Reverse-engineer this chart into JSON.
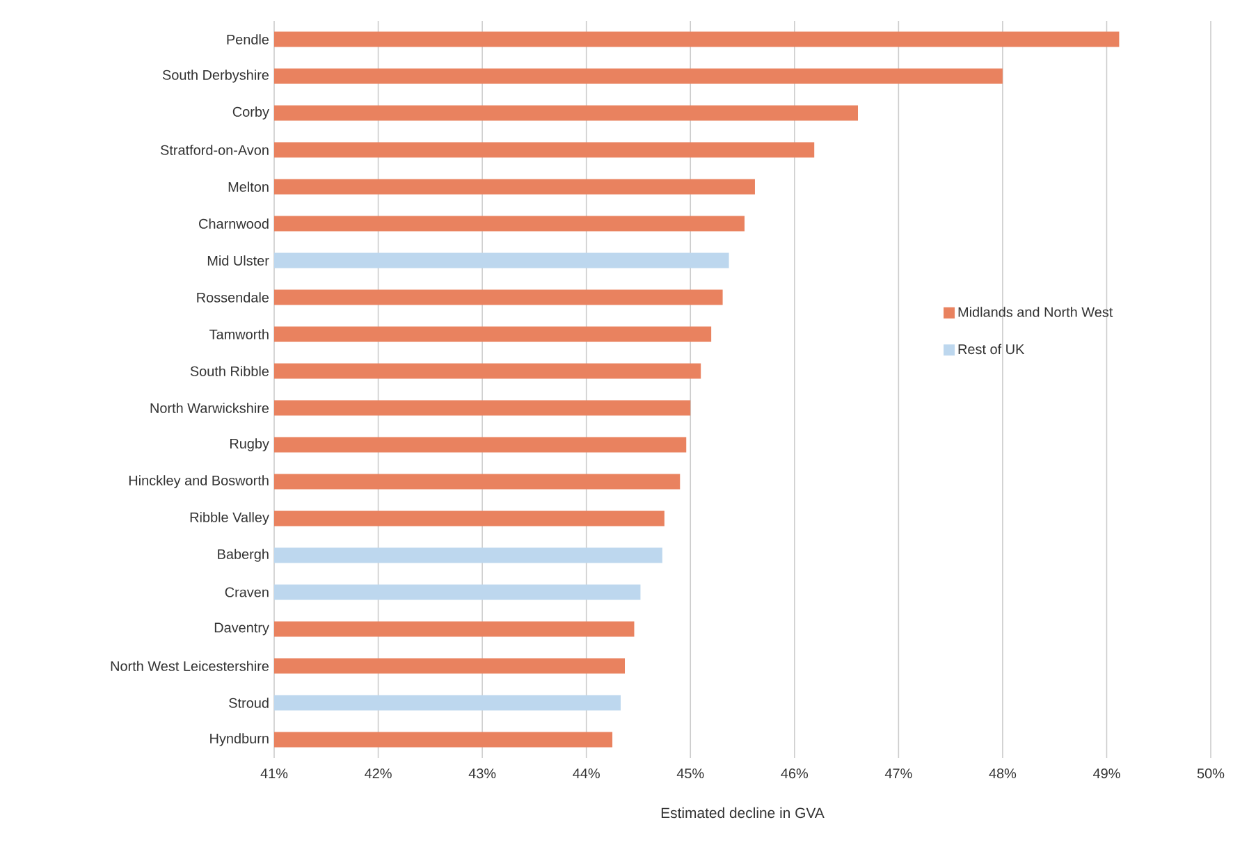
{
  "chart_data": {
    "type": "bar",
    "orientation": "horizontal",
    "xlabel": "Estimated decline in GVA",
    "categories": [
      "Pendle",
      "South Derbyshire",
      "Corby",
      "Stratford-on-Avon",
      "Melton",
      "Charnwood",
      "Mid Ulster",
      "Rossendale",
      "Tamworth",
      "South Ribble",
      "North Warwickshire",
      "Rugby",
      "Hinckley and Bosworth",
      "Ribble Valley",
      "Babergh",
      "Craven",
      "Daventry",
      "North West Leicestershire",
      "Stroud",
      "Hyndburn"
    ],
    "series": [
      {
        "name": "Midlands and North West",
        "color": "#e9825f",
        "values": [
          49.12,
          48.0,
          46.61,
          46.19,
          45.62,
          45.52,
          null,
          45.31,
          45.2,
          45.1,
          45.0,
          44.96,
          44.9,
          44.75,
          null,
          null,
          44.46,
          44.37,
          null,
          44.25
        ]
      },
      {
        "name": "Rest of UK",
        "color": "#bdd7ee",
        "values": [
          null,
          null,
          null,
          null,
          null,
          null,
          45.37,
          null,
          null,
          null,
          null,
          null,
          null,
          null,
          44.73,
          44.52,
          null,
          null,
          44.33,
          null
        ]
      }
    ],
    "xlim": [
      41,
      50
    ],
    "xticks": [
      {
        "value": 41,
        "label": "41%"
      },
      {
        "value": 42,
        "label": "42%"
      },
      {
        "value": 43,
        "label": "43%"
      },
      {
        "value": 44,
        "label": "44%"
      },
      {
        "value": 45,
        "label": "45%"
      },
      {
        "value": 46,
        "label": "46%"
      },
      {
        "value": 47,
        "label": "47%"
      },
      {
        "value": 48,
        "label": "48%"
      },
      {
        "value": 49,
        "label": "49%"
      },
      {
        "value": 50,
        "label": "50%"
      }
    ],
    "grid": "x",
    "legend": "right"
  }
}
